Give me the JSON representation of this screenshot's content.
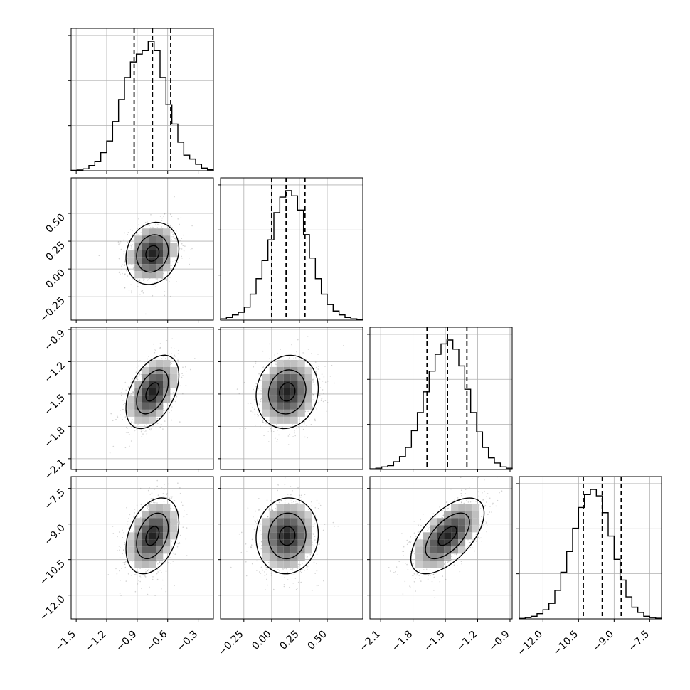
{
  "colors": {
    "line": "#000000",
    "grid": "#b0b0b0",
    "scatter": "#808080",
    "density_dark": "#000000"
  },
  "chart_data": {
    "type": "corner",
    "grid": true,
    "quantile_lines": "dashed",
    "parameters": [
      {
        "range": [
          -1.55,
          -0.15
        ],
        "ticks": [
          -1.5,
          -1.2,
          -0.9,
          -0.6,
          -0.3
        ],
        "tick_labels": [
          "−1.5",
          "−1.2",
          "−0.9",
          "−0.6",
          "−0.3"
        ],
        "quantiles": [
          -0.93,
          -0.75,
          -0.57
        ],
        "mean": -0.75,
        "sd": 0.13,
        "hist": [
          0.003,
          0.006,
          0.015,
          0.04,
          0.07,
          0.14,
          0.23,
          0.38,
          0.55,
          0.72,
          0.84,
          0.9,
          0.93,
          1.0,
          0.93,
          0.72,
          0.51,
          0.36,
          0.22,
          0.12,
          0.09,
          0.05,
          0.02,
          0.007
        ]
      },
      {
        "range": [
          -0.46,
          0.82
        ],
        "ticks": [
          -0.25,
          0.0,
          0.25,
          0.5
        ],
        "tick_labels": [
          "−0.25",
          "0.00",
          "0.25",
          "0.50"
        ],
        "quantiles": [
          0.0,
          0.13,
          0.3
        ],
        "mean": 0.14,
        "sd": 0.14,
        "hist": [
          0.01,
          0.02,
          0.04,
          0.06,
          0.1,
          0.2,
          0.32,
          0.46,
          0.62,
          0.83,
          0.95,
          1.0,
          0.96,
          0.85,
          0.66,
          0.48,
          0.32,
          0.2,
          0.12,
          0.07,
          0.04,
          0.02,
          0.01,
          0.005
        ]
      },
      {
        "range": [
          -2.2,
          -0.88
        ],
        "ticks": [
          -2.1,
          -1.8,
          -1.5,
          -1.2,
          -0.9
        ],
        "tick_labels": [
          "−2.1",
          "−1.8",
          "−1.5",
          "−1.2",
          "−0.9"
        ],
        "quantiles": [
          -1.67,
          -1.48,
          -1.3
        ],
        "mean": -1.48,
        "sd": 0.17,
        "hist": [
          0.005,
          0.01,
          0.02,
          0.03,
          0.06,
          0.1,
          0.17,
          0.3,
          0.44,
          0.6,
          0.76,
          0.89,
          0.97,
          1.0,
          0.93,
          0.8,
          0.62,
          0.44,
          0.29,
          0.17,
          0.09,
          0.05,
          0.02,
          0.01
        ]
      },
      {
        "range": [
          -13.0,
          -7.0
        ],
        "ticks": [
          -12.0,
          -10.5,
          -9.0,
          -7.5
        ],
        "tick_labels": [
          "−12.0",
          "−10.5",
          "−9.0",
          "−7.5"
        ],
        "quantiles": [
          -10.3,
          -9.5,
          -8.7
        ],
        "mean": -9.5,
        "sd": 0.8,
        "hist": [
          0.004,
          0.01,
          0.02,
          0.04,
          0.07,
          0.12,
          0.22,
          0.36,
          0.52,
          0.7,
          0.86,
          0.96,
          1.0,
          0.95,
          0.82,
          0.64,
          0.46,
          0.3,
          0.17,
          0.09,
          0.05,
          0.02,
          0.01,
          0.005
        ]
      }
    ],
    "correlations": {
      "1-0": 0.15,
      "2-0": 0.45,
      "2-1": 0.1,
      "3-0": 0.35,
      "3-1": 0.05,
      "3-2": 0.6
    }
  }
}
